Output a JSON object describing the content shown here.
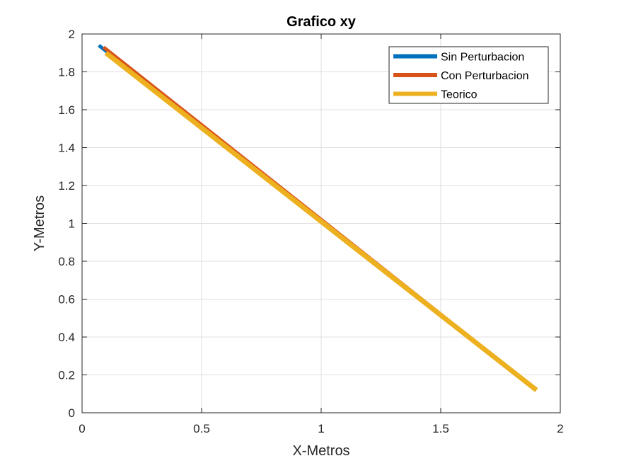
{
  "chart_data": {
    "type": "line",
    "title": "Grafico xy",
    "xlabel": "X-Metros",
    "ylabel": "Y-Metros",
    "xlim": [
      0,
      2
    ],
    "ylim": [
      0,
      2
    ],
    "xticks": [
      0,
      0.5,
      1,
      1.5,
      2
    ],
    "xtick_labels": [
      "0",
      "0.5",
      "1",
      "1.5",
      "2"
    ],
    "yticks": [
      0,
      0.2,
      0.4,
      0.6,
      0.8,
      1,
      1.2,
      1.4,
      1.6,
      1.8,
      2
    ],
    "ytick_labels": [
      "0",
      "0.2",
      "0.4",
      "0.6",
      "0.8",
      "1",
      "1.2",
      "1.4",
      "1.6",
      "1.8",
      "2"
    ],
    "grid": true,
    "legend_position": "top-right",
    "series": [
      {
        "name": "Sin Perturbacion",
        "color": "#0072BD",
        "x": [
          0.07,
          1.9
        ],
        "y": [
          1.94,
          0.12
        ]
      },
      {
        "name": "Con Perturbacion",
        "color": "#D95319",
        "x": [
          0.09,
          1.9
        ],
        "y": [
          1.93,
          0.12
        ]
      },
      {
        "name": "Teorico",
        "color": "#EDB120",
        "x": [
          0.1,
          1.9
        ],
        "y": [
          1.9,
          0.12
        ]
      }
    ]
  }
}
